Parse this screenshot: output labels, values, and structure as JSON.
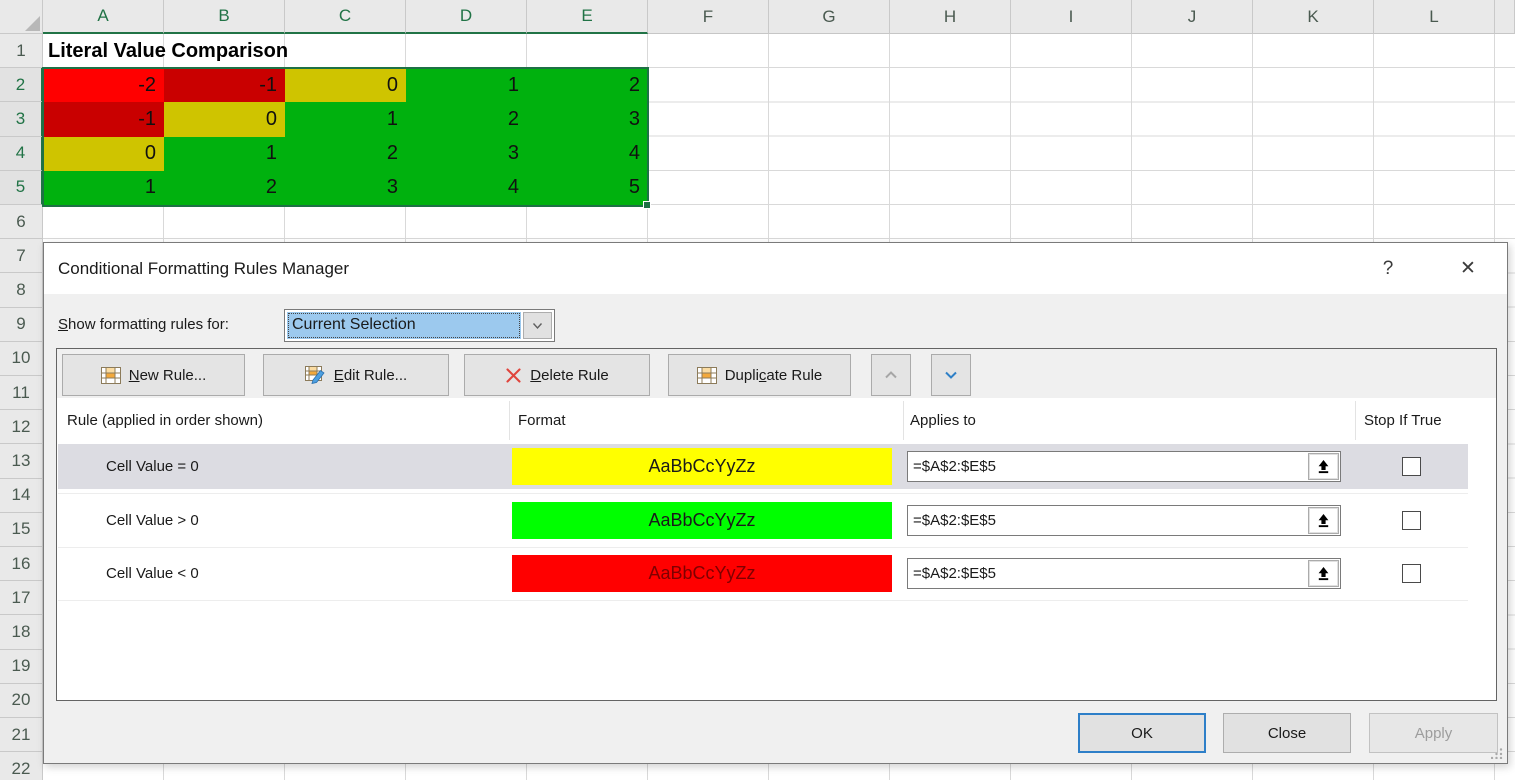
{
  "spreadsheet": {
    "column_headers": [
      "A",
      "B",
      "C",
      "D",
      "E",
      "F",
      "G",
      "H",
      "I",
      "J",
      "K",
      "L"
    ],
    "selected_column_count": 5,
    "row_headers": [
      "1",
      "2",
      "3",
      "4",
      "5",
      "6",
      "7",
      "8",
      "9",
      "10",
      "11",
      "12",
      "13",
      "14",
      "15",
      "16",
      "17",
      "18",
      "19",
      "20",
      "21",
      "22"
    ],
    "selected_rows_start": 2,
    "selected_rows_end": 5,
    "title_cell_text": "Literal Value Comparison",
    "data_rows": [
      {
        "cells": [
          {
            "value": "-2",
            "bg": "#FF0000"
          },
          {
            "value": "-1",
            "bg": "#C90000"
          },
          {
            "value": "0",
            "bg": "#CFC400"
          },
          {
            "value": "1",
            "bg": "#00B10E"
          },
          {
            "value": "2",
            "bg": "#00B10E"
          }
        ]
      },
      {
        "cells": [
          {
            "value": "-1",
            "bg": "#C90000"
          },
          {
            "value": "0",
            "bg": "#CFC400"
          },
          {
            "value": "1",
            "bg": "#00B10E"
          },
          {
            "value": "2",
            "bg": "#00B10E"
          },
          {
            "value": "3",
            "bg": "#00B10E"
          }
        ]
      },
      {
        "cells": [
          {
            "value": "0",
            "bg": "#CFC400"
          },
          {
            "value": "1",
            "bg": "#00B10E"
          },
          {
            "value": "2",
            "bg": "#00B10E"
          },
          {
            "value": "3",
            "bg": "#00B10E"
          },
          {
            "value": "4",
            "bg": "#00B10E"
          }
        ]
      },
      {
        "cells": [
          {
            "value": "1",
            "bg": "#00B10E"
          },
          {
            "value": "2",
            "bg": "#00B10E"
          },
          {
            "value": "3",
            "bg": "#00B10E"
          },
          {
            "value": "4",
            "bg": "#00B10E"
          },
          {
            "value": "5",
            "bg": "#00B10E"
          }
        ]
      }
    ]
  },
  "dialog": {
    "title": "Conditional Formatting Rules Manager",
    "help_glyph": "?",
    "close_glyph": "✕",
    "show_rules": {
      "pre": "",
      "key": "S",
      "post": "how formatting rules for:",
      "value": "Current Selection"
    },
    "toolbar": {
      "new_rule": {
        "pre": "",
        "key": "N",
        "post": "ew Rule..."
      },
      "edit_rule": {
        "pre": "",
        "key": "E",
        "post": "dit Rule..."
      },
      "delete_rule": {
        "pre": "",
        "key": "D",
        "post": "elete Rule"
      },
      "duplicate_rule": {
        "pre": "Dupli",
        "key": "c",
        "post": "ate Rule"
      }
    },
    "list_headers": {
      "rule": "Rule (applied in order shown)",
      "format": "Format",
      "applies_to": "Applies to",
      "stop_if_true": "Stop If True"
    },
    "rules": [
      {
        "label": "Cell Value = 0",
        "preview": "AaBbCcYyZz",
        "fill": "#FFFF00",
        "text_color": "#1A1A1A",
        "applies_to": "=$A$2:$E$5",
        "stop_if_true": false,
        "selected": true
      },
      {
        "label": "Cell Value > 0",
        "preview": "AaBbCcYyZz",
        "fill": "#00FF00",
        "text_color": "#1A1A1A",
        "applies_to": "=$A$2:$E$5",
        "stop_if_true": false,
        "selected": false
      },
      {
        "label": "Cell Value < 0",
        "preview": "AaBbCcYyZz",
        "fill": "#FF0000",
        "text_color": "#7F0000",
        "applies_to": "=$A$2:$E$5",
        "stop_if_true": false,
        "selected": false
      }
    ],
    "footer": {
      "ok": "OK",
      "close": "Close",
      "apply": "Apply"
    }
  },
  "colors": {
    "selection_green": "#217346",
    "accent_blue": "#2E7FC8",
    "header_bg": "#E9E9E9",
    "gridline": "#D9D9D9",
    "dialog_bg": "#F0F0F0",
    "selected_row_bg": "#DCDCE2"
  }
}
